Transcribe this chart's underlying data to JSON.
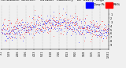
{
  "background_color": "#f0f0f0",
  "plot_bg_color": "#f0f0f0",
  "grid_color": "#999999",
  "n_points": 365,
  "seed": 42,
  "blue_mean": 0.55,
  "blue_std": 0.12,
  "red_mean": 0.58,
  "red_std": 0.13,
  "seasonal_amp": 0.1,
  "ylim_min": 0.0,
  "ylim_max": 1.15,
  "n_gridlines": 13,
  "marker_size": 0.8,
  "title_fontsize": 3.2,
  "tick_fontsize": 2.5,
  "legend_fontsize": 2.8,
  "ytick_positions": [
    0.1,
    0.2,
    0.3,
    0.4,
    0.5,
    0.6,
    0.7,
    0.8,
    0.9
  ],
  "ytick_labels": [
    "9",
    "8",
    "7",
    "6",
    "5",
    "4",
    "3",
    "2",
    "1"
  ],
  "xtick_labels": [
    "1/1",
    "1/29",
    "2/26",
    "3/26",
    "4/23",
    "5/21",
    "6/18",
    "7/16",
    "8/13",
    "9/10",
    "10/8",
    "11/5",
    "12/3",
    "12/31"
  ],
  "title_line1": "Milwaukee Weather  Outdoor Humidity  At Daily High",
  "title_line2": "Temperature  (Past Year)",
  "legend_blue": "Dew Pt",
  "legend_red": "RH%"
}
